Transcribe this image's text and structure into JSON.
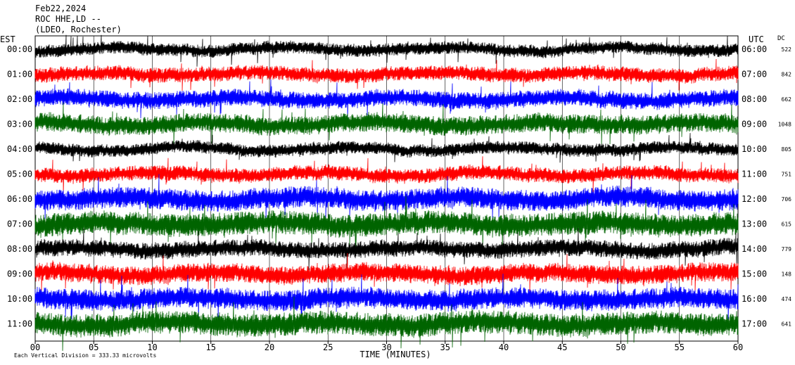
{
  "header": {
    "date": "Feb22,2024",
    "station": "ROC HHE,LD --",
    "location": "(LDEO, Rochester)"
  },
  "chart_data": {
    "type": "line",
    "title": "",
    "left_axis_label": "EST",
    "right_axis_label": "UTC",
    "dc_label": "DC",
    "xlabel": "TIME (MINUTES)",
    "xlim": [
      0,
      60
    ],
    "x_ticks": [
      "00",
      "05",
      "10",
      "15",
      "20",
      "25",
      "30",
      "35",
      "40",
      "45",
      "50",
      "55",
      "60"
    ],
    "grid": "vertical lines every 5 minutes",
    "footnote": "Each Vertical Division = 333.33 microvolts",
    "trace_colors": [
      "#000000",
      "#ff0000",
      "#0000ff",
      "#006400"
    ],
    "rows": [
      {
        "est": "00:00",
        "utc": "06:00",
        "dc": "522",
        "color": "#000000"
      },
      {
        "est": "01:00",
        "utc": "07:00",
        "dc": "842",
        "color": "#ff0000"
      },
      {
        "est": "02:00",
        "utc": "08:00",
        "dc": "662",
        "color": "#0000ff"
      },
      {
        "est": "03:00",
        "utc": "09:00",
        "dc": "1048",
        "color": "#006400"
      },
      {
        "est": "04:00",
        "utc": "10:00",
        "dc": "805",
        "color": "#000000"
      },
      {
        "est": "05:00",
        "utc": "11:00",
        "dc": "751",
        "color": "#ff0000"
      },
      {
        "est": "06:00",
        "utc": "12:00",
        "dc": "706",
        "color": "#0000ff"
      },
      {
        "est": "07:00",
        "utc": "13:00",
        "dc": "615",
        "color": "#006400"
      },
      {
        "est": "08:00",
        "utc": "14:00",
        "dc": "779",
        "color": "#000000"
      },
      {
        "est": "09:00",
        "utc": "15:00",
        "dc": "148",
        "color": "#ff0000"
      },
      {
        "est": "10:00",
        "utc": "16:00",
        "dc": "474",
        "color": "#0000ff"
      },
      {
        "est": "11:00",
        "utc": "17:00",
        "dc": "641",
        "color": "#006400"
      }
    ]
  }
}
